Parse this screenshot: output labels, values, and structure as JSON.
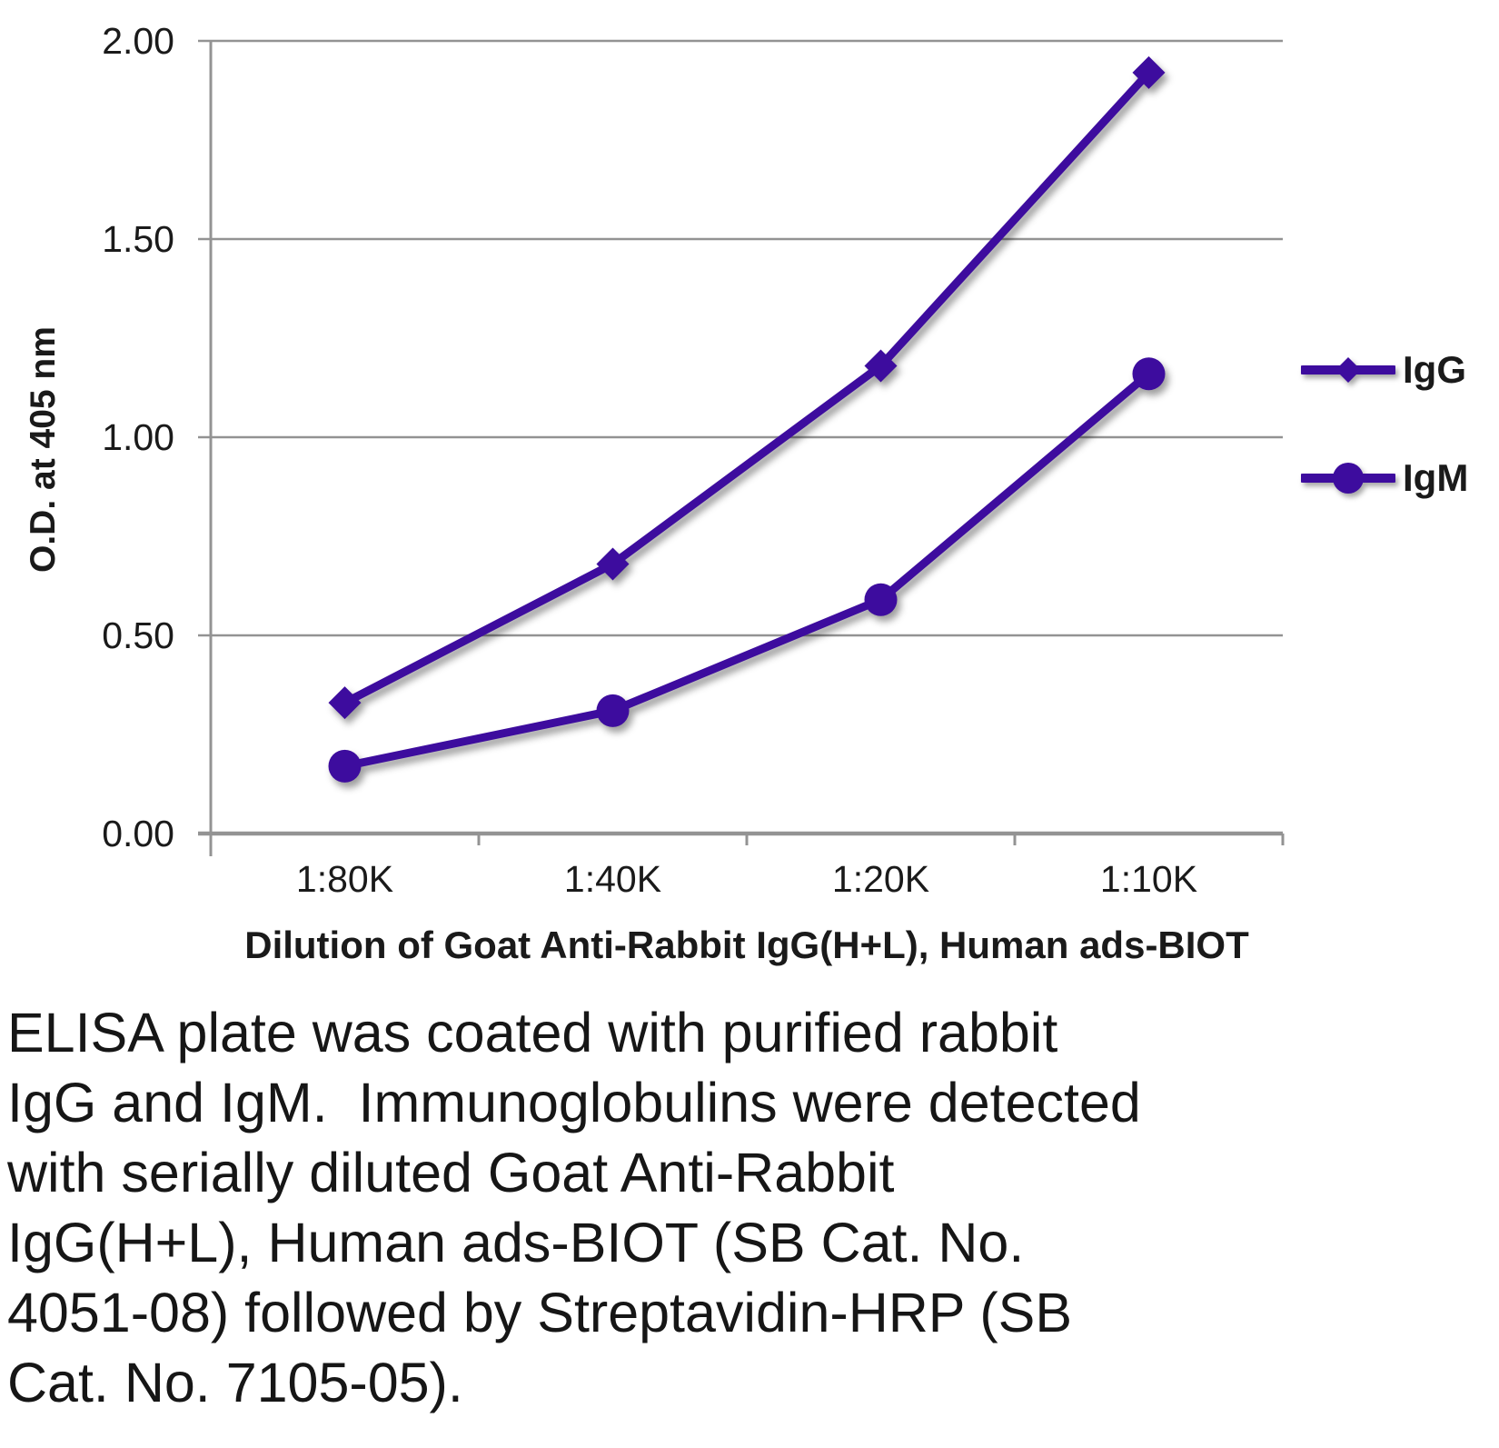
{
  "chart_data": {
    "type": "line",
    "categories": [
      "1:80K",
      "1:40K",
      "1:20K",
      "1:10K"
    ],
    "series": [
      {
        "name": "IgG",
        "marker": "diamond",
        "values": [
          0.33,
          0.68,
          1.18,
          1.92
        ]
      },
      {
        "name": "IgM",
        "marker": "circle",
        "values": [
          0.17,
          0.31,
          0.59,
          1.16
        ]
      }
    ],
    "title": "",
    "xlabel": "Dilution of Goat Anti-Rabbit IgG(H+L), Human ads-BIOT",
    "ylabel": "O.D. at 405 nm",
    "ylim": [
      0,
      2
    ],
    "yticks": [
      "0.00",
      "0.50",
      "1.00",
      "1.50",
      "2.00"
    ],
    "grid": true,
    "legend_position": "right",
    "series_color": "#3D0C9E",
    "axis_color": "#939393"
  },
  "caption": "ELISA plate was coated with purified rabbit\nIgG and IgM.  Immunoglobulins were detected\nwith serially diluted Goat Anti-Rabbit\nIgG(H+L), Human ads-BIOT (SB Cat. No.\n4051-08) followed by Streptavidin-HRP (SB\nCat. No. 7105-05)."
}
